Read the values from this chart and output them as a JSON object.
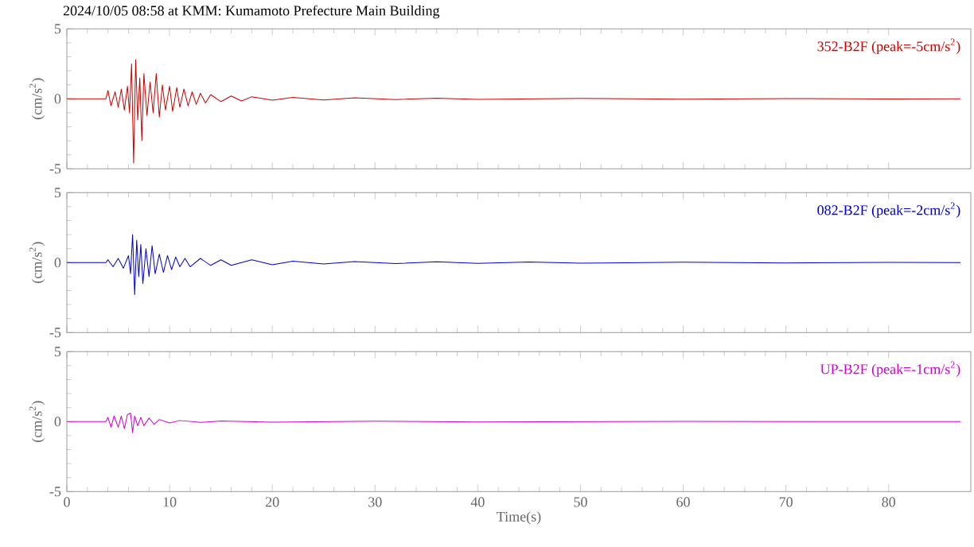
{
  "chart_data": [
    {
      "type": "line",
      "title": "2024/10/05 08:58 at KMM: Kumamoto Prefecture Main Building",
      "ylabel": "(cm/s$^{2}$)",
      "xlim": [
        0,
        88
      ],
      "ylim": [
        -5,
        5
      ],
      "xticks": [
        0,
        10,
        20,
        30,
        40,
        50,
        60,
        70,
        80
      ],
      "yticks": [
        -5,
        0,
        5
      ],
      "tick_labels": "y",
      "x": [
        0,
        3.8,
        4.0,
        4.3,
        4.7,
        5.0,
        5.3,
        5.6,
        5.9,
        6.1,
        6.3,
        6.5,
        6.7,
        6.9,
        7.1,
        7.3,
        7.5,
        7.8,
        8.1,
        8.4,
        8.7,
        9.0,
        9.3,
        9.6,
        10,
        10.3,
        10.7,
        11,
        11.4,
        11.8,
        12.2,
        12.6,
        13,
        13.5,
        14,
        15,
        16,
        17,
        18,
        20,
        22,
        25,
        28,
        32,
        36,
        40,
        50,
        60,
        70,
        80,
        87
      ],
      "series": [
        {
          "name": "352-B2F (peak=-5cm/s$^{2}$)",
          "color": "#cc0000",
          "values": [
            0,
            0,
            0.6,
            -0.5,
            0.5,
            -0.6,
            0.7,
            -0.8,
            0.9,
            -1.0,
            2.5,
            -4.6,
            2.8,
            -1.5,
            1.5,
            -3.0,
            1.8,
            -1.2,
            1.2,
            -1.0,
            1.8,
            -1.3,
            1.0,
            -0.8,
            0.9,
            -0.9,
            0.8,
            -0.6,
            0.7,
            -0.5,
            0.5,
            -0.4,
            0.4,
            -0.3,
            0.3,
            -0.2,
            0.2,
            -0.15,
            0.15,
            -0.1,
            0.1,
            -0.08,
            0.07,
            -0.05,
            0.05,
            -0.04,
            0.03,
            -0.02,
            0.02,
            -0.01,
            0
          ]
        }
      ]
    },
    {
      "type": "line",
      "ylabel": "(cm/s$^{2}$)",
      "xlim": [
        0,
        88
      ],
      "ylim": [
        -5,
        5
      ],
      "xticks": [
        0,
        10,
        20,
        30,
        40,
        50,
        60,
        70,
        80
      ],
      "yticks": [
        -5,
        0,
        5
      ],
      "tick_labels": "y",
      "x": [
        0,
        3.8,
        4,
        4.5,
        5,
        5.5,
        6,
        6.2,
        6.4,
        6.6,
        6.8,
        7.0,
        7.2,
        7.4,
        7.7,
        8.0,
        8.3,
        8.6,
        9,
        9.4,
        9.8,
        10.2,
        10.6,
        11,
        11.5,
        12,
        13,
        14,
        15,
        16,
        18,
        20,
        22,
        25,
        28,
        32,
        36,
        40,
        45,
        50,
        60,
        70,
        80,
        87
      ],
      "series": [
        {
          "name": "082-B2F (peak=-2cm/s$^{2}$)",
          "color": "#0000cc",
          "values": [
            0,
            0,
            0.2,
            -0.3,
            0.3,
            -0.4,
            0.5,
            -0.8,
            2.0,
            -2.3,
            1.6,
            -1.0,
            1.3,
            -1.5,
            1.0,
            -1.0,
            1.2,
            -0.8,
            0.6,
            -0.7,
            0.5,
            -0.5,
            0.4,
            -0.3,
            0.3,
            -0.3,
            0.3,
            -0.2,
            0.2,
            -0.2,
            0.2,
            -0.15,
            0.1,
            -0.1,
            0.08,
            -0.07,
            0.06,
            -0.05,
            0.05,
            -0.04,
            0.03,
            -0.03,
            0.02,
            0
          ]
        }
      ]
    },
    {
      "type": "line",
      "xlabel": "Time(s)",
      "ylabel": "(cm/s$^{2}$)",
      "xlim": [
        0,
        88
      ],
      "ylim": [
        -5,
        5
      ],
      "xticks": [
        0,
        10,
        20,
        30,
        40,
        50,
        60,
        70,
        80
      ],
      "yticks": [
        -5,
        0,
        5
      ],
      "x": [
        0,
        3.8,
        4,
        4.3,
        4.6,
        5,
        5.3,
        5.6,
        5.9,
        6.2,
        6.4,
        6.6,
        6.9,
        7.2,
        7.5,
        8,
        8.5,
        9,
        10,
        11,
        13,
        15,
        20,
        30,
        40,
        60,
        87
      ],
      "series": [
        {
          "name": "UP-B2F (peak=-1cm/s$^{2}$)",
          "color": "#cc00cc",
          "values": [
            0,
            0,
            0.3,
            -0.4,
            0.4,
            -0.4,
            0.4,
            -0.5,
            0.5,
            0.6,
            -0.8,
            0.4,
            -0.3,
            0.3,
            -0.3,
            0.25,
            -0.2,
            0.15,
            -0.1,
            0.08,
            -0.06,
            0.05,
            -0.04,
            0.03,
            -0.02,
            0.01,
            0
          ]
        }
      ]
    }
  ]
}
